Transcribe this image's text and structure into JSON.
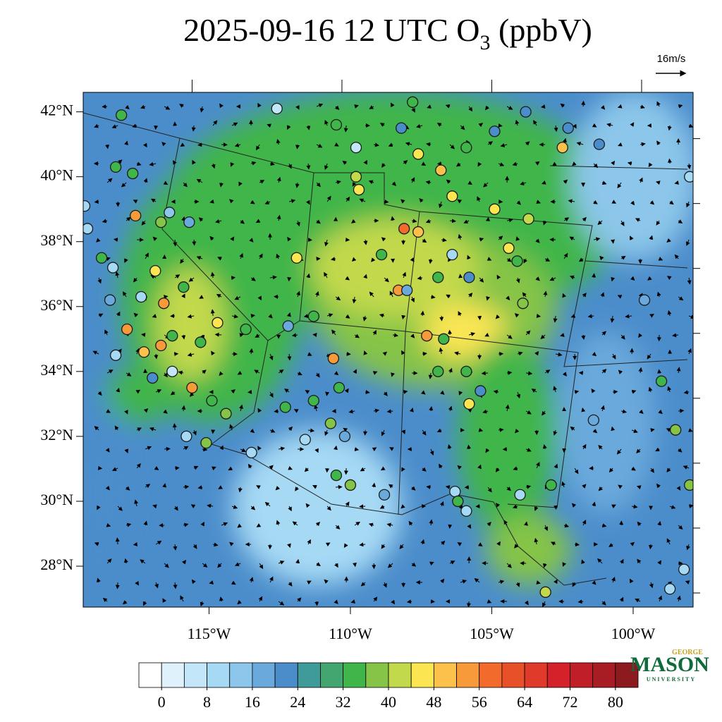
{
  "chart_data": {
    "type": "map",
    "title_prefix": "2025-09-16 12 UTC O",
    "title_subscript": "3",
    "title_suffix": " (ppbV)",
    "wind_reference": "16m/s",
    "xlim": [
      -119.45,
      -97.88
    ],
    "ylim": [
      26.74,
      42.6
    ],
    "xticks": [
      {
        "value": -115,
        "label": "115°W"
      },
      {
        "value": -110,
        "label": "110°W"
      },
      {
        "value": -105,
        "label": "105°W"
      },
      {
        "value": -100,
        "label": "100°W"
      }
    ],
    "yticks": [
      {
        "value": 42,
        "label": "42°N"
      },
      {
        "value": 40,
        "label": "40°N"
      },
      {
        "value": 38,
        "label": "38°N"
      },
      {
        "value": 36,
        "label": "36°N"
      },
      {
        "value": 34,
        "label": "34°N"
      },
      {
        "value": 32,
        "label": "32°N"
      },
      {
        "value": 30,
        "label": "30°N"
      },
      {
        "value": 28,
        "label": "28°N"
      }
    ],
    "colorbar": {
      "lim": [
        -4,
        84
      ],
      "ticks": [
        0,
        8,
        16,
        24,
        32,
        40,
        48,
        56,
        64,
        72,
        80
      ],
      "colors": [
        "#ffffff",
        "#dff1fb",
        "#c3e6f8",
        "#a6d9f4",
        "#8cc6ea",
        "#6aa9dc",
        "#4b8dcb",
        "#3f9a9a",
        "#43a56f",
        "#3fb54a",
        "#85c446",
        "#c3d94c",
        "#fbe652",
        "#fbc14b",
        "#f79a3a",
        "#f26b2c",
        "#e8502a",
        "#e03a2a",
        "#d52129",
        "#c11f28",
        "#a81c23",
        "#8c1a1e"
      ]
    },
    "sites": {
      "lon": [
        -118.1,
        -112.6,
        -110.5,
        -109.8,
        -109.8,
        -109.7,
        -107.8,
        -108.2,
        -107.6,
        -106.8,
        -105.9,
        -104.9,
        -103.8,
        -102.3,
        -102.5,
        -101.2,
        -98.0,
        -106.4,
        -104.9,
        -103.7,
        -108.1,
        -107.6,
        -108.3,
        -108.0,
        -111.9,
        -108.9,
        -106.4,
        -105.8,
        -106.9,
        -104.4,
        -104.1,
        -103.9,
        -107.3,
        -106.7,
        -106.9,
        -105.9,
        -105.8,
        -105.4,
        -112.2,
        -111.3,
        -110.6,
        -110.4,
        -111.3,
        -112.3,
        -113.7,
        -114.7,
        -115.3,
        -116.3,
        -116.6,
        -116.9,
        -115.9,
        -117.6,
        -116.7,
        -116.4,
        -115.7,
        -118.3,
        -117.7,
        -119.4,
        -119.3,
        -118.8,
        -118.4,
        -118.5,
        -117.4,
        -117.9,
        -118.3,
        -117.3,
        -116.7,
        -116.3,
        -117.0,
        -115.6,
        -114.9,
        -114.4,
        -115.8,
        -115.1,
        -113.5,
        -111.6,
        -110.7,
        -110.2,
        -110.5,
        -110.0,
        -108.8,
        -106.3,
        -105.9,
        -106.2,
        -104.0,
        -103.1,
        -102.9,
        -101.4,
        -99.6,
        -99.0,
        -98.5,
        -98.0,
        -98.2,
        -98.7
      ],
      "lat": [
        41.9,
        42.1,
        41.6,
        40.9,
        40.0,
        39.6,
        42.3,
        41.5,
        40.7,
        40.2,
        40.9,
        41.4,
        42.0,
        41.5,
        40.9,
        41.0,
        40.0,
        39.4,
        39.0,
        38.7,
        38.4,
        38.3,
        36.5,
        36.5,
        37.5,
        37.6,
        37.6,
        36.9,
        36.9,
        37.8,
        37.4,
        36.1,
        35.1,
        35.0,
        34.0,
        34.0,
        33.0,
        33.4,
        35.4,
        35.7,
        34.4,
        33.5,
        33.1,
        32.9,
        35.3,
        35.5,
        34.9,
        35.1,
        36.1,
        37.1,
        36.6,
        38.8,
        38.6,
        38.9,
        38.6,
        40.3,
        40.1,
        39.1,
        38.4,
        37.5,
        37.2,
        36.2,
        36.3,
        35.3,
        34.5,
        34.6,
        34.8,
        34.0,
        33.8,
        33.5,
        33.1,
        32.7,
        32.0,
        31.8,
        31.5,
        31.9,
        32.4,
        32.0,
        30.8,
        30.5,
        30.2,
        30.3,
        29.7,
        30.0,
        30.2,
        27.2,
        30.5,
        32.5,
        36.2,
        33.7,
        32.2,
        30.5,
        27.9,
        27.3
      ],
      "values": [
        34,
        6,
        34,
        6,
        42,
        46,
        34,
        22,
        46,
        50,
        34,
        22,
        22,
        22,
        50,
        22,
        10,
        46,
        46,
        42,
        58,
        50,
        54,
        18,
        46,
        34,
        10,
        22,
        34,
        46,
        34,
        38,
        54,
        34,
        34,
        34,
        46,
        22,
        18,
        34,
        54,
        34,
        34,
        34,
        34,
        46,
        34,
        34,
        56,
        46,
        34,
        56,
        38,
        14,
        18,
        34,
        34,
        10,
        10,
        34,
        10,
        18,
        10,
        54,
        10,
        50,
        54,
        6,
        22,
        54,
        34,
        38,
        10,
        38,
        10,
        10,
        38,
        18,
        34,
        38,
        18,
        10,
        10,
        34,
        10,
        42,
        34,
        18,
        18,
        34,
        38,
        38,
        10,
        10
      ]
    },
    "logo_top": "GEORGE",
    "logo_main": "MASON",
    "logo_bottom": "UNIVERSITY"
  }
}
